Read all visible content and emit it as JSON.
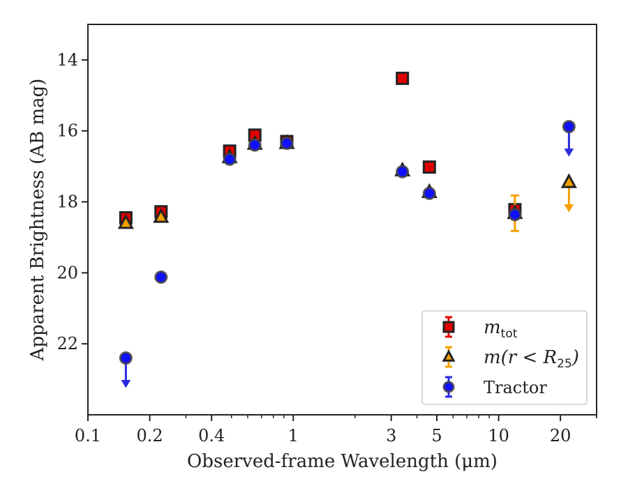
{
  "chart_data": {
    "type": "scatter",
    "xlabel": "Observed-frame Wavelength (μm)",
    "ylabel": "Apparent Brightness (AB mag)",
    "xscale": "log",
    "xlim": [
      0.1,
      30
    ],
    "ylim": [
      24,
      13
    ],
    "y_inverted": true,
    "x_ticks": [
      0.1,
      0.2,
      0.4,
      1,
      3,
      5,
      10,
      20
    ],
    "x_tick_labels": [
      "0.1",
      "0.2",
      "0.4",
      "1",
      "3",
      "5",
      "10",
      "20"
    ],
    "y_ticks": [
      14,
      16,
      18,
      20,
      22
    ],
    "y_tick_labels": [
      "14",
      "16",
      "18",
      "20",
      "22"
    ],
    "grid": false,
    "legend_position": "bottom-right",
    "series": [
      {
        "name": "m_tot",
        "legend_main": "m",
        "legend_sub": "tot",
        "marker": "square",
        "color": "#e00000",
        "errcolor": "#e00000",
        "points": [
          {
            "x": 0.153,
            "y": 18.45
          },
          {
            "x": 0.227,
            "y": 18.28
          },
          {
            "x": 0.49,
            "y": 16.57
          },
          {
            "x": 0.65,
            "y": 16.12
          },
          {
            "x": 0.93,
            "y": 16.3
          },
          {
            "x": 3.4,
            "y": 14.52
          },
          {
            "x": 4.6,
            "y": 17.02
          },
          {
            "x": 12.0,
            "y": 18.22,
            "err": 0.15
          }
        ]
      },
      {
        "name": "m(r < R25)",
        "legend_main": "m(r < R",
        "legend_sub": "25",
        "legend_tail": ")",
        "marker": "triangle",
        "color": "#f5a000",
        "errcolor": "#f5a000",
        "points": [
          {
            "x": 0.153,
            "y": 18.6
          },
          {
            "x": 0.227,
            "y": 18.43
          },
          {
            "x": 0.49,
            "y": 16.75
          },
          {
            "x": 0.65,
            "y": 16.37
          },
          {
            "x": 0.93,
            "y": 16.35
          },
          {
            "x": 3.4,
            "y": 17.12
          },
          {
            "x": 4.6,
            "y": 17.73
          },
          {
            "x": 12.0,
            "y": 18.32,
            "err": 0.5
          },
          {
            "x": 22.0,
            "y": 17.45,
            "upper_limit": true
          }
        ]
      },
      {
        "name": "Tractor",
        "legend_main": "Tractor",
        "marker": "circle",
        "color": "#1010ff",
        "errcolor": "#2a2ae0",
        "points": [
          {
            "x": 0.153,
            "y": 22.4,
            "upper_limit": true
          },
          {
            "x": 0.227,
            "y": 20.12
          },
          {
            "x": 0.49,
            "y": 16.8
          },
          {
            "x": 0.65,
            "y": 16.4
          },
          {
            "x": 0.93,
            "y": 16.35
          },
          {
            "x": 3.4,
            "y": 17.15
          },
          {
            "x": 4.6,
            "y": 17.76
          },
          {
            "x": 12.0,
            "y": 18.36
          },
          {
            "x": 22.0,
            "y": 15.88,
            "upper_limit": true
          }
        ]
      }
    ]
  }
}
